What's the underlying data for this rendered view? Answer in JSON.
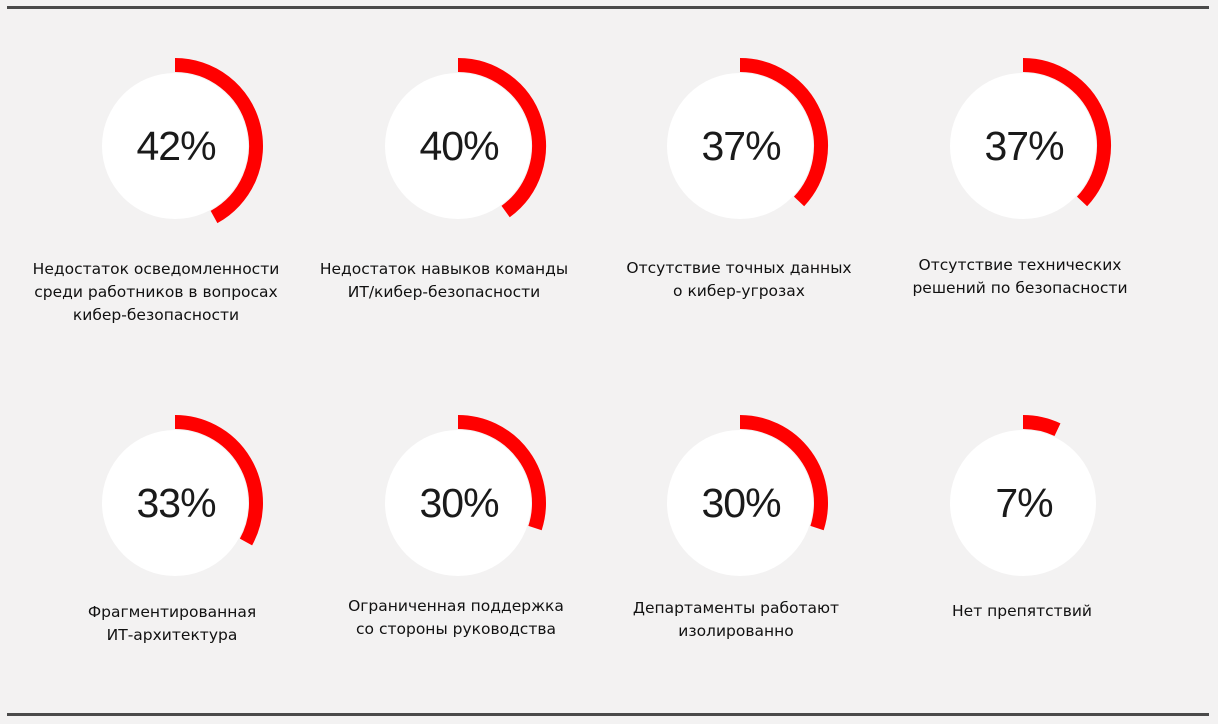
{
  "colors": {
    "background": "#f3f2f2",
    "accent": "#ff0000",
    "disc": "#ffffff",
    "text": "#1a1a1a",
    "rule": "#4a4a4a"
  },
  "chart_data": {
    "type": "radial-progress",
    "items": [
      {
        "value": 42,
        "label_text": "42%",
        "caption_lines": [
          "Недостаток осведомленности",
          "среди работников в вопросах",
          "кибер-безопасности"
        ]
      },
      {
        "value": 40,
        "label_text": "40%",
        "caption_lines": [
          "Недостаток навыков команды",
          "ИТ/кибер-безопасности"
        ]
      },
      {
        "value": 37,
        "label_text": "37%",
        "caption_lines": [
          "Отсутствие точных данных",
          "о кибер-угрозах"
        ]
      },
      {
        "value": 37,
        "label_text": "37%",
        "caption_lines": [
          "Отсутствие технических",
          "решений по безопасности"
        ]
      },
      {
        "value": 33,
        "label_text": "33%",
        "caption_lines": [
          "Фрагментированная",
          "ИТ-архитектура"
        ]
      },
      {
        "value": 30,
        "label_text": "30%",
        "caption_lines": [
          "Ограниченная поддержка",
          "со стороны руководства"
        ]
      },
      {
        "value": 30,
        "label_text": "30%",
        "caption_lines": [
          "Департаменты работают",
          "изолированно"
        ]
      },
      {
        "value": 7,
        "label_text": "7%",
        "caption_lines": [
          "Нет препятствий"
        ]
      }
    ]
  }
}
